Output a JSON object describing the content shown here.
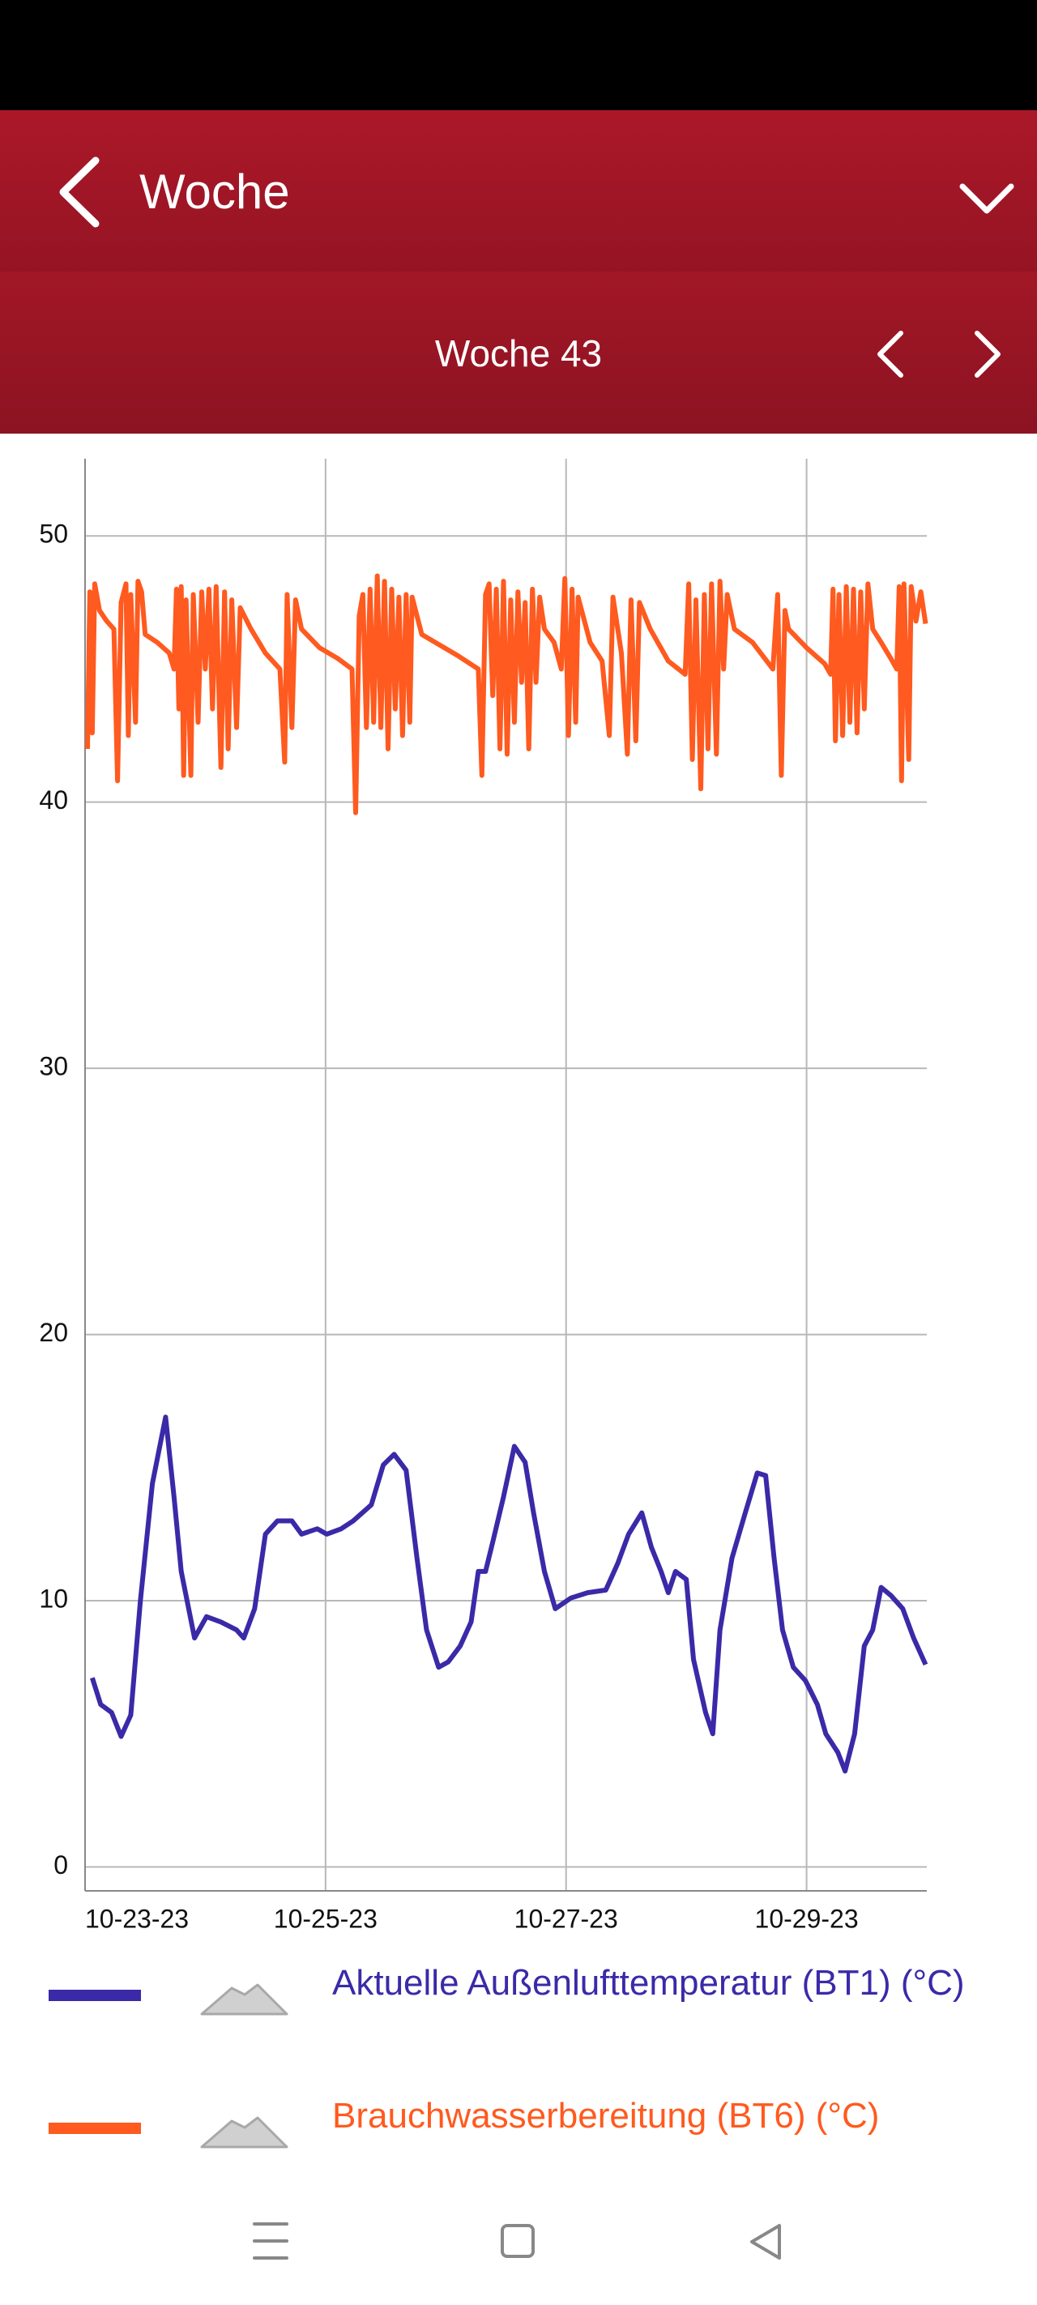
{
  "header": {
    "title": "Woche"
  },
  "subheader": {
    "title": "Woche 43"
  },
  "chart_data": {
    "type": "line",
    "xlim": [
      0,
      7
    ],
    "xticks": [
      {
        "value": 0,
        "label": "10-23-23"
      },
      {
        "value": 2,
        "label": "10-25-23"
      },
      {
        "value": 4,
        "label": "10-27-23"
      },
      {
        "value": 6,
        "label": "10-29-23"
      }
    ],
    "ylim": [
      -0.9,
      52.9
    ],
    "yticks": [
      0,
      10,
      20,
      30,
      40,
      50
    ],
    "grid": true,
    "series": [
      {
        "name": "Aktuelle Außenlufttemperatur (BT1) (°C)",
        "color": "#3a2aa8",
        "x": [
          0.06,
          0.13,
          0.22,
          0.3,
          0.38,
          0.46,
          0.56,
          0.67,
          0.74,
          0.8,
          0.91,
          1.01,
          1.13,
          1.26,
          1.32,
          1.41,
          1.5,
          1.6,
          1.72,
          1.8,
          1.93,
          2.01,
          2.13,
          2.23,
          2.38,
          2.48,
          2.57,
          2.67,
          2.76,
          2.84,
          2.94,
          3.02,
          3.12,
          3.21,
          3.27,
          3.33,
          3.39,
          3.48,
          3.57,
          3.66,
          3.73,
          3.82,
          3.91,
          4.04,
          4.18,
          4.33,
          4.43,
          4.52,
          4.63,
          4.71,
          4.79,
          4.85,
          4.91,
          5.0,
          5.06,
          5.16,
          5.22,
          5.28,
          5.38,
          5.49,
          5.59,
          5.66,
          5.73,
          5.8,
          5.89,
          5.99,
          6.09,
          6.16,
          6.26,
          6.32,
          6.4,
          6.48,
          6.55,
          6.62,
          6.7,
          6.8,
          6.89,
          6.99
        ],
        "values": [
          7.1,
          6.1,
          5.8,
          4.9,
          5.7,
          10.0,
          14.4,
          16.9,
          13.9,
          11.1,
          8.6,
          9.4,
          9.2,
          8.9,
          8.6,
          9.7,
          12.5,
          13.0,
          13.0,
          12.5,
          12.7,
          12.5,
          12.7,
          13.0,
          13.6,
          15.1,
          15.5,
          14.9,
          11.6,
          8.9,
          7.5,
          7.7,
          8.3,
          9.2,
          11.1,
          11.1,
          12.2,
          13.9,
          15.8,
          15.2,
          13.3,
          11.1,
          9.7,
          10.1,
          10.3,
          10.4,
          11.4,
          12.5,
          13.3,
          12.0,
          11.1,
          10.3,
          11.1,
          10.8,
          7.8,
          5.8,
          5.0,
          8.9,
          11.6,
          13.3,
          14.8,
          14.7,
          11.6,
          8.9,
          7.5,
          7.0,
          6.1,
          5.0,
          4.3,
          3.6,
          5.0,
          8.3,
          8.9,
          10.5,
          10.2,
          9.7,
          8.6,
          7.6
        ]
      },
      {
        "name": "Brauchwasserbereitung (BT6) (°C)",
        "color": "#ff5a1f",
        "x": [
          0.02,
          0.04,
          0.06,
          0.08,
          0.12,
          0.18,
          0.24,
          0.27,
          0.3,
          0.34,
          0.36,
          0.38,
          0.42,
          0.44,
          0.47,
          0.5,
          0.6,
          0.7,
          0.74,
          0.76,
          0.78,
          0.8,
          0.82,
          0.84,
          0.88,
          0.9,
          0.94,
          0.97,
          1.0,
          1.03,
          1.06,
          1.09,
          1.13,
          1.16,
          1.19,
          1.22,
          1.26,
          1.29,
          1.38,
          1.5,
          1.62,
          1.66,
          1.68,
          1.72,
          1.75,
          1.8,
          1.95,
          2.1,
          2.22,
          2.25,
          2.28,
          2.31,
          2.34,
          2.37,
          2.4,
          2.43,
          2.46,
          2.49,
          2.52,
          2.55,
          2.58,
          2.61,
          2.64,
          2.67,
          2.7,
          2.72,
          2.8,
          2.95,
          3.1,
          3.27,
          3.3,
          3.33,
          3.36,
          3.39,
          3.42,
          3.45,
          3.48,
          3.51,
          3.54,
          3.57,
          3.6,
          3.63,
          3.66,
          3.69,
          3.72,
          3.75,
          3.78,
          3.82,
          3.9,
          3.96,
          3.99,
          4.02,
          4.05,
          4.08,
          4.1,
          4.2,
          4.3,
          4.36,
          4.39,
          4.46,
          4.51,
          4.54,
          4.58,
          4.61,
          4.7,
          4.85,
          4.99,
          5.02,
          5.05,
          5.08,
          5.12,
          5.15,
          5.18,
          5.21,
          5.25,
          5.28,
          5.31,
          5.34,
          5.4,
          5.55,
          5.72,
          5.76,
          5.79,
          5.82,
          5.85,
          6.0,
          6.15,
          6.2,
          6.22,
          6.24,
          6.27,
          6.3,
          6.33,
          6.36,
          6.39,
          6.42,
          6.45,
          6.48,
          6.51,
          6.55,
          6.62,
          6.7,
          6.75,
          6.77,
          6.79,
          6.81,
          6.85,
          6.87,
          6.91,
          6.95,
          6.99
        ],
        "values": [
          42.0,
          47.9,
          42.6,
          48.2,
          47.2,
          46.8,
          46.5,
          40.8,
          47.5,
          48.2,
          42.5,
          47.8,
          43.0,
          48.3,
          47.9,
          46.3,
          46.0,
          45.6,
          45.0,
          48.0,
          43.5,
          48.1,
          41.0,
          47.6,
          41.0,
          47.8,
          43.0,
          47.9,
          45.0,
          48.0,
          43.5,
          48.1,
          41.3,
          47.9,
          42.0,
          47.6,
          42.8,
          47.3,
          46.5,
          45.6,
          45.0,
          41.5,
          47.8,
          42.8,
          47.6,
          46.5,
          45.8,
          45.4,
          45.0,
          39.6,
          47.0,
          47.8,
          42.8,
          48.0,
          43.0,
          48.5,
          42.8,
          48.3,
          42.0,
          48.0,
          43.5,
          47.7,
          42.5,
          47.8,
          43.0,
          47.7,
          46.3,
          45.9,
          45.5,
          45.0,
          41.0,
          47.8,
          48.2,
          44.0,
          48.0,
          42.0,
          48.3,
          41.8,
          47.6,
          43.0,
          47.9,
          44.5,
          47.5,
          42.0,
          48.0,
          44.5,
          47.7,
          46.5,
          46.0,
          45.0,
          48.4,
          42.5,
          48.0,
          43.0,
          47.7,
          46.0,
          45.3,
          42.5,
          47.7,
          45.6,
          41.8,
          47.6,
          42.3,
          47.5,
          46.5,
          45.3,
          44.8,
          48.2,
          41.6,
          47.6,
          40.5,
          47.8,
          42.0,
          48.2,
          41.8,
          48.3,
          45.0,
          47.8,
          46.5,
          46.0,
          45.0,
          47.8,
          41.0,
          47.2,
          46.5,
          45.8,
          45.2,
          44.8,
          48.0,
          42.3,
          47.8,
          42.5,
          48.1,
          43.0,
          48.0,
          42.6,
          47.9,
          43.5,
          48.2,
          46.5,
          46.0,
          45.4,
          45.0,
          48.1,
          40.8,
          48.2,
          41.6,
          48.1,
          46.8,
          47.9,
          46.7
        ]
      }
    ]
  }
}
